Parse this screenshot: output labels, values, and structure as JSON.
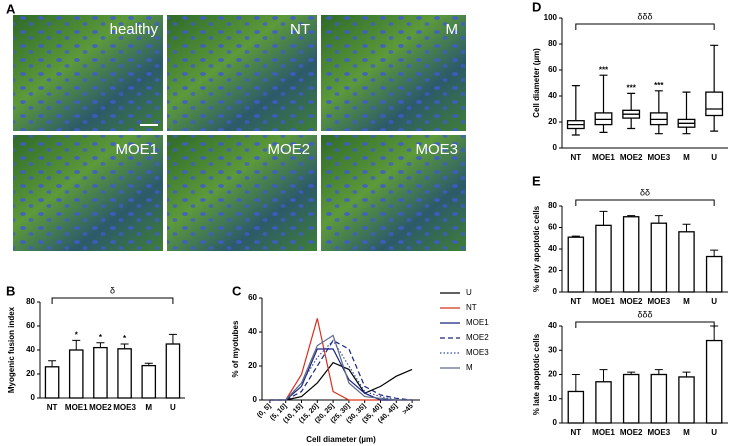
{
  "panel_labels": [
    "A",
    "B",
    "C",
    "D",
    "E"
  ],
  "images": [
    "healthy",
    "NT",
    "M",
    "MOE1",
    "MOE2",
    "MOE3"
  ],
  "chart_data": [
    {
      "type": "bar",
      "y_label": "Myogenic fusion index",
      "categories": [
        "NT",
        "MOE1",
        "MOE2",
        "MOE3",
        "M",
        "U"
      ],
      "values": [
        26,
        40,
        42,
        41,
        27,
        45
      ],
      "errors": [
        5,
        8,
        4,
        4,
        2,
        8
      ],
      "significance": [
        null,
        "*",
        "*",
        "*",
        null,
        null
      ],
      "bracket_label": "δ",
      "ylim": [
        0,
        80
      ],
      "yticks": [
        0,
        20,
        40,
        60,
        80
      ],
      "color": "#ffffff"
    },
    {
      "type": "line",
      "y_label": "% of myotubes",
      "x_label": "Cell diameter (µm)",
      "categories": [
        "(0, 5]",
        "(5, 10]",
        "(10, 15]",
        "(15, 20]",
        "(20, 25]",
        "(25, 30]",
        "(30, 35]",
        "(35, 40]",
        "(40, 45]",
        ">45"
      ],
      "series": [
        {
          "name": "U",
          "color": "#000000",
          "dash": "solid",
          "values": [
            0,
            0,
            2,
            10,
            22,
            18,
            4,
            8,
            14,
            18
          ]
        },
        {
          "name": "NT",
          "color": "#d7301f",
          "dash": "solid",
          "values": [
            0,
            0,
            15,
            48,
            5,
            0,
            0,
            0,
            0,
            0
          ]
        },
        {
          "name": "MOE1",
          "color": "#1a237e",
          "dash": "solid",
          "values": [
            0,
            0,
            8,
            30,
            30,
            12,
            4,
            0,
            0,
            0
          ]
        },
        {
          "name": "MOE2",
          "color": "#1a237e",
          "dash": "dashed",
          "values": [
            0,
            0,
            5,
            20,
            35,
            30,
            8,
            3,
            1,
            0
          ]
        },
        {
          "name": "MOE3",
          "color": "#3949ab",
          "dash": "dotted",
          "values": [
            0,
            0,
            10,
            25,
            35,
            20,
            5,
            2,
            0,
            0
          ]
        },
        {
          "name": "M",
          "color": "#5c6b8a",
          "dash": "solid",
          "values": [
            0,
            0,
            10,
            32,
            38,
            10,
            2,
            1,
            0,
            0
          ]
        }
      ],
      "ylim": [
        0,
        60
      ],
      "yticks": [
        0,
        20,
        40,
        60
      ],
      "legend": "right"
    },
    {
      "type": "box",
      "y_label": "Cell diameter (µm)",
      "categories": [
        "NT",
        "MOE1",
        "MOE2",
        "MOE3",
        "M",
        "U"
      ],
      "boxes": [
        {
          "min": 10,
          "q1": 15,
          "median": 18,
          "q3": 21,
          "max": 48
        },
        {
          "min": 12,
          "q1": 18,
          "median": 22,
          "q3": 27,
          "max": 56
        },
        {
          "min": 15,
          "q1": 23,
          "median": 26,
          "q3": 29,
          "max": 42
        },
        {
          "min": 11,
          "q1": 18,
          "median": 22,
          "q3": 27,
          "max": 44
        },
        {
          "min": 11,
          "q1": 16,
          "median": 19,
          "q3": 22,
          "max": 43
        },
        {
          "min": 13,
          "q1": 25,
          "median": 30,
          "q3": 43,
          "max": 79
        }
      ],
      "significance": [
        null,
        "***",
        "***",
        "***",
        null,
        null
      ],
      "bracket_label": "δδδ",
      "ylim": [
        0,
        100
      ],
      "yticks": [
        0,
        20,
        40,
        60,
        80,
        100
      ],
      "color": "#ffffff"
    },
    {
      "type": "bar",
      "y_label": "% early apoptotic cells",
      "categories": [
        "NT",
        "MOE1",
        "MOE2",
        "MOE3",
        "M",
        "U"
      ],
      "values": [
        51,
        62,
        70,
        64,
        56,
        33
      ],
      "errors": [
        1,
        13,
        1,
        7,
        7,
        6
      ],
      "bracket_label": "δδ",
      "ylim": [
        0,
        80
      ],
      "yticks": [
        0,
        20,
        40,
        60,
        80
      ],
      "color": "#ffffff"
    },
    {
      "type": "bar",
      "y_label": "% late apoptotic cells",
      "categories": [
        "NT",
        "MOE1",
        "MOE2",
        "MOE3",
        "M",
        "U"
      ],
      "values": [
        13,
        17,
        20,
        20,
        19,
        34
      ],
      "errors": [
        7,
        5,
        1,
        2,
        2,
        6
      ],
      "bracket_label": "δδδ",
      "ylim": [
        0,
        40
      ],
      "yticks": [
        0,
        10,
        20,
        30,
        40
      ],
      "color": "#ffffff"
    }
  ]
}
